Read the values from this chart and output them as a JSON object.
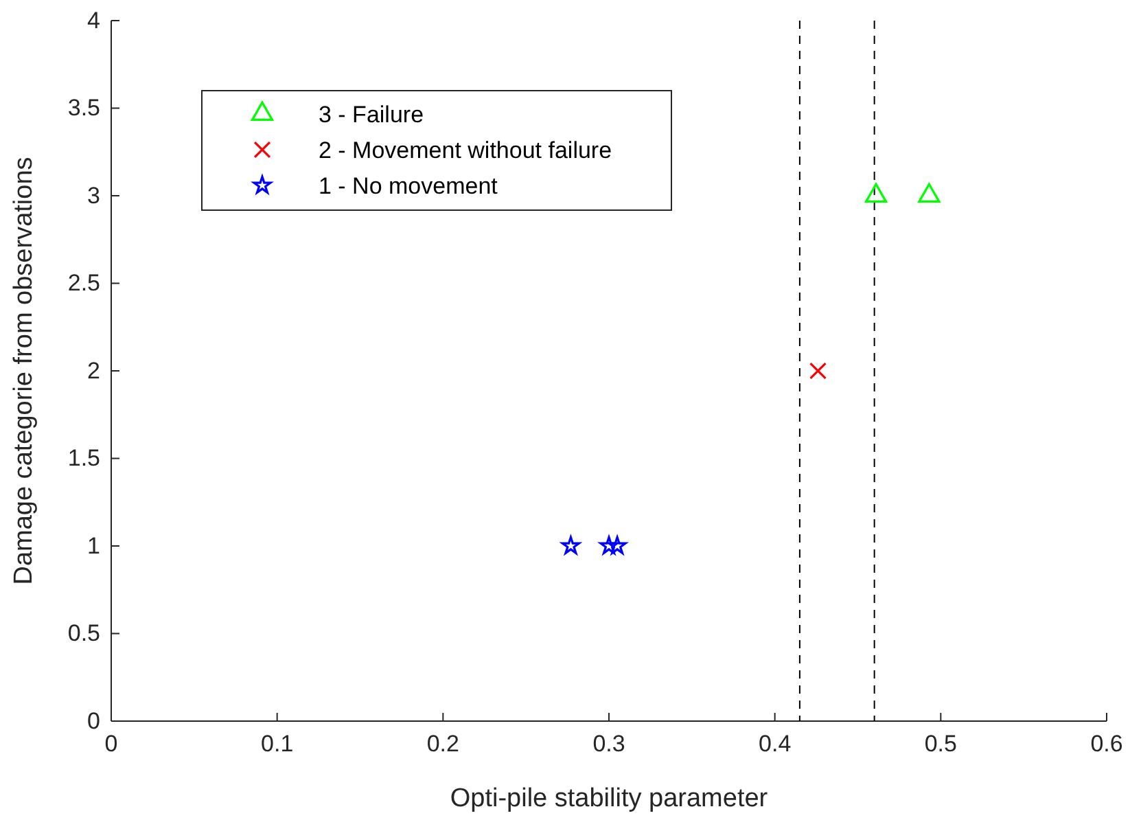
{
  "chart_data": {
    "type": "scatter",
    "xlabel": "Opti-pile stability parameter",
    "ylabel": "Damage categorie from observations",
    "xlim": [
      0,
      0.6
    ],
    "xticks": [
      0,
      0.1,
      0.2,
      0.3,
      0.4,
      0.5,
      0.6
    ],
    "ylim": [
      0,
      4
    ],
    "yticks": [
      0,
      0.5,
      1,
      1.5,
      2,
      2.5,
      3,
      3.5,
      4
    ],
    "grid": false,
    "legend": "top left",
    "series": [
      {
        "name": "3 - Failure",
        "color": "#00ff00",
        "marker": "triangle",
        "x": [
          0.461,
          0.493
        ],
        "values": [
          3,
          3
        ]
      },
      {
        "name": "2 - Movement without failure",
        "color": "#ff0000",
        "marker": "cross",
        "x": [
          0.426
        ],
        "values": [
          2
        ]
      },
      {
        "name": "1 - No movement",
        "color": "#0000ff",
        "marker": "star",
        "x": [
          0.277,
          0.3,
          0.305
        ],
        "values": [
          1,
          1,
          1
        ]
      }
    ],
    "ref_lines": [
      {
        "axis": "x",
        "value": 0.415,
        "color": "#000000",
        "line_style": "dashed"
      },
      {
        "axis": "x",
        "value": 0.46,
        "color": "#000000",
        "line_style": "dashed"
      }
    ]
  }
}
